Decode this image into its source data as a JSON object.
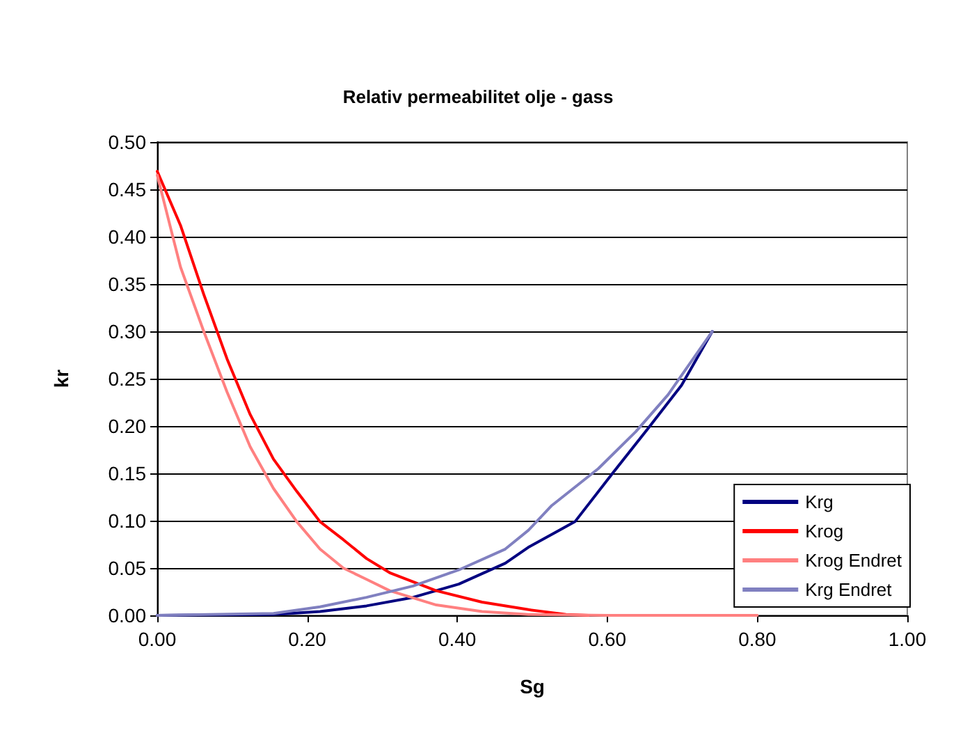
{
  "chart_data": {
    "type": "line",
    "title": "Relativ permeabilitet olje - gass",
    "xlabel": "Sg",
    "ylabel": "kr",
    "xlim": [
      0,
      1
    ],
    "xticks": [
      {
        "value": 0,
        "label": "0.00"
      },
      {
        "value": 0.2,
        "label": "0.20"
      },
      {
        "value": 0.4,
        "label": "0.40"
      },
      {
        "value": 0.6,
        "label": "0.60"
      },
      {
        "value": 0.8,
        "label": "0.80"
      },
      {
        "value": 1,
        "label": "1.00"
      }
    ],
    "ylim": [
      0,
      0.5
    ],
    "yticks": [
      {
        "value": 0,
        "label": "0.00"
      },
      {
        "value": 0.05,
        "label": "0.05"
      },
      {
        "value": 0.1,
        "label": "0.10"
      },
      {
        "value": 0.15,
        "label": "0.15"
      },
      {
        "value": 0.2,
        "label": "0.20"
      },
      {
        "value": 0.25,
        "label": "0.25"
      },
      {
        "value": 0.3,
        "label": "0.30"
      },
      {
        "value": 0.35,
        "label": "0.35"
      },
      {
        "value": 0.4,
        "label": "0.40"
      },
      {
        "value": 0.45,
        "label": "0.45"
      },
      {
        "value": 0.5,
        "label": "0.50"
      }
    ],
    "grid": "y",
    "legend": "bottom right",
    "marker": "none",
    "line_style": "solid",
    "series": [
      {
        "name": "Krg",
        "color": "#000080",
        "x": [
          0,
          0.155,
          0.217,
          0.279,
          0.341,
          0.402,
          0.464,
          0.495,
          0.557,
          0.607,
          0.656,
          0.699,
          0.74
        ],
        "values": [
          0,
          0.001,
          0.004,
          0.01,
          0.019,
          0.033,
          0.055,
          0.072,
          0.099,
          0.15,
          0.199,
          0.243,
          0.3
        ]
      },
      {
        "name": "Krog",
        "color": "#ff0000",
        "x": [
          0,
          0.031,
          0.062,
          0.093,
          0.124,
          0.155,
          0.186,
          0.217,
          0.248,
          0.279,
          0.31,
          0.372,
          0.433,
          0.495,
          0.545,
          0.575
        ],
        "values": [
          0.469,
          0.412,
          0.339,
          0.271,
          0.212,
          0.165,
          0.131,
          0.099,
          0.08,
          0.06,
          0.045,
          0.026,
          0.014,
          0.006,
          0.001,
          0
        ]
      },
      {
        "name": "Krog Endret",
        "color": "#ff8080",
        "x": [
          0,
          0.031,
          0.062,
          0.093,
          0.124,
          0.155,
          0.186,
          0.217,
          0.248,
          0.279,
          0.31,
          0.372,
          0.433,
          0.495,
          0.6,
          0.8
        ],
        "values": [
          0.465,
          0.368,
          0.3,
          0.236,
          0.178,
          0.134,
          0.099,
          0.07,
          0.05,
          0.038,
          0.026,
          0.011,
          0.004,
          0.001,
          0,
          0
        ]
      },
      {
        "name": "Krg Endret",
        "color": "#8080c0",
        "x": [
          0,
          0.155,
          0.217,
          0.279,
          0.341,
          0.402,
          0.464,
          0.495,
          0.526,
          0.588,
          0.638,
          0.681,
          0.74
        ],
        "values": [
          0,
          0.002,
          0.009,
          0.019,
          0.031,
          0.048,
          0.07,
          0.09,
          0.116,
          0.155,
          0.194,
          0.233,
          0.3
        ]
      }
    ]
  }
}
